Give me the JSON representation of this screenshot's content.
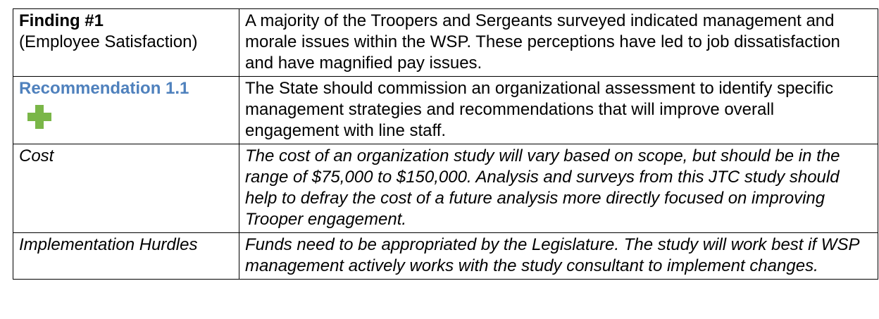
{
  "table": {
    "rows": [
      {
        "label": "Finding #1",
        "sublabel": "(Employee Satisfaction)",
        "text": "A majority of the Troopers and Sergeants surveyed indicated management and morale issues within the WSP.  These perceptions have led to job dissatisfaction and have magnified pay issues."
      },
      {
        "label": "Recommendation 1.1",
        "text": "The State should commission an organizational assessment to identify specific management strategies and recommendations that will improve overall engagement with line staff."
      },
      {
        "label": "Cost",
        "text": "The cost of an organization study will vary based on scope, but should be in the range of $75,000 to $150,000.  Analysis and surveys from this JTC study should help to defray the cost of a future analysis more directly focused on improving Trooper engagement."
      },
      {
        "label": "Implementation Hurdles",
        "text": "Funds need to be appropriated by the Legislature. The study will work best if WSP management actively works with the study consultant to implement changes."
      }
    ]
  }
}
